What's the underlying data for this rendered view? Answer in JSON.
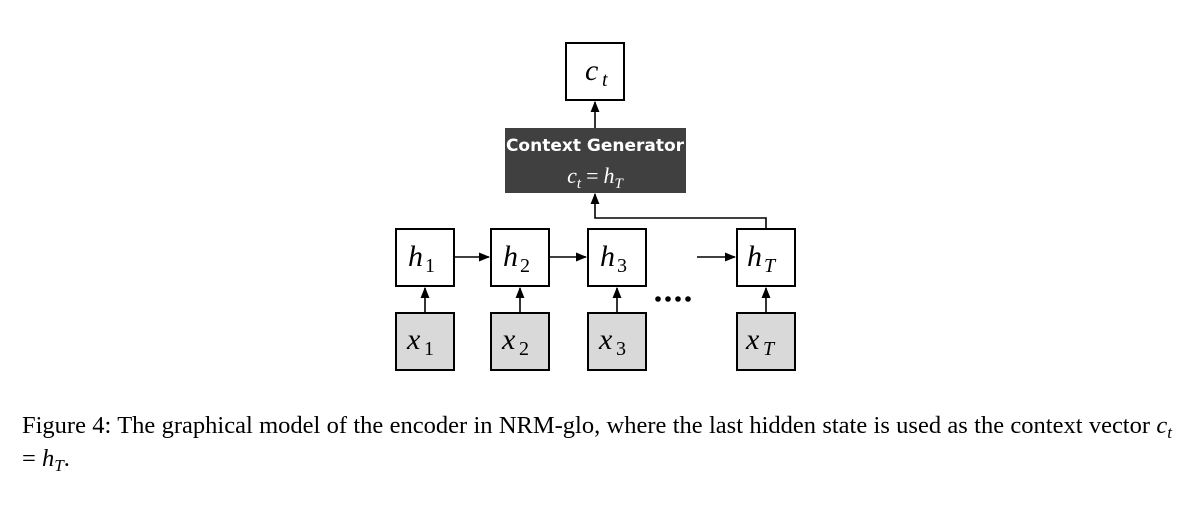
{
  "diagram": {
    "output_node": {
      "symbol": "c",
      "subscript": "t"
    },
    "generator": {
      "title": "Context Generator",
      "formula_lhs": "c",
      "formula_lhs_sub": "t",
      "formula_eq": "=",
      "formula_rhs": "h",
      "formula_rhs_sub": "T"
    },
    "hidden_nodes": [
      {
        "symbol": "h",
        "subscript": "1"
      },
      {
        "symbol": "h",
        "subscript": "2"
      },
      {
        "symbol": "h",
        "subscript": "3"
      },
      {
        "symbol": "h",
        "subscript": "T"
      }
    ],
    "input_nodes": [
      {
        "symbol": "x",
        "subscript": "1"
      },
      {
        "symbol": "x",
        "subscript": "2"
      },
      {
        "symbol": "x",
        "subscript": "3"
      },
      {
        "symbol": "x",
        "subscript": "T"
      }
    ],
    "colors": {
      "generator_fill": "#404040",
      "input_fill": "#d9d9d9",
      "hidden_fill": "#ffffff",
      "stroke": "#000000"
    }
  },
  "caption": {
    "text_before": "Figure 4: The graphical model of the encoder in NRM-glo, where the last hidden state is used as the context vector ",
    "math_lhs": "c",
    "math_lhs_sub": "t",
    "math_eq": " = ",
    "math_rhs": "h",
    "math_rhs_sub": "T",
    "text_after": "."
  }
}
